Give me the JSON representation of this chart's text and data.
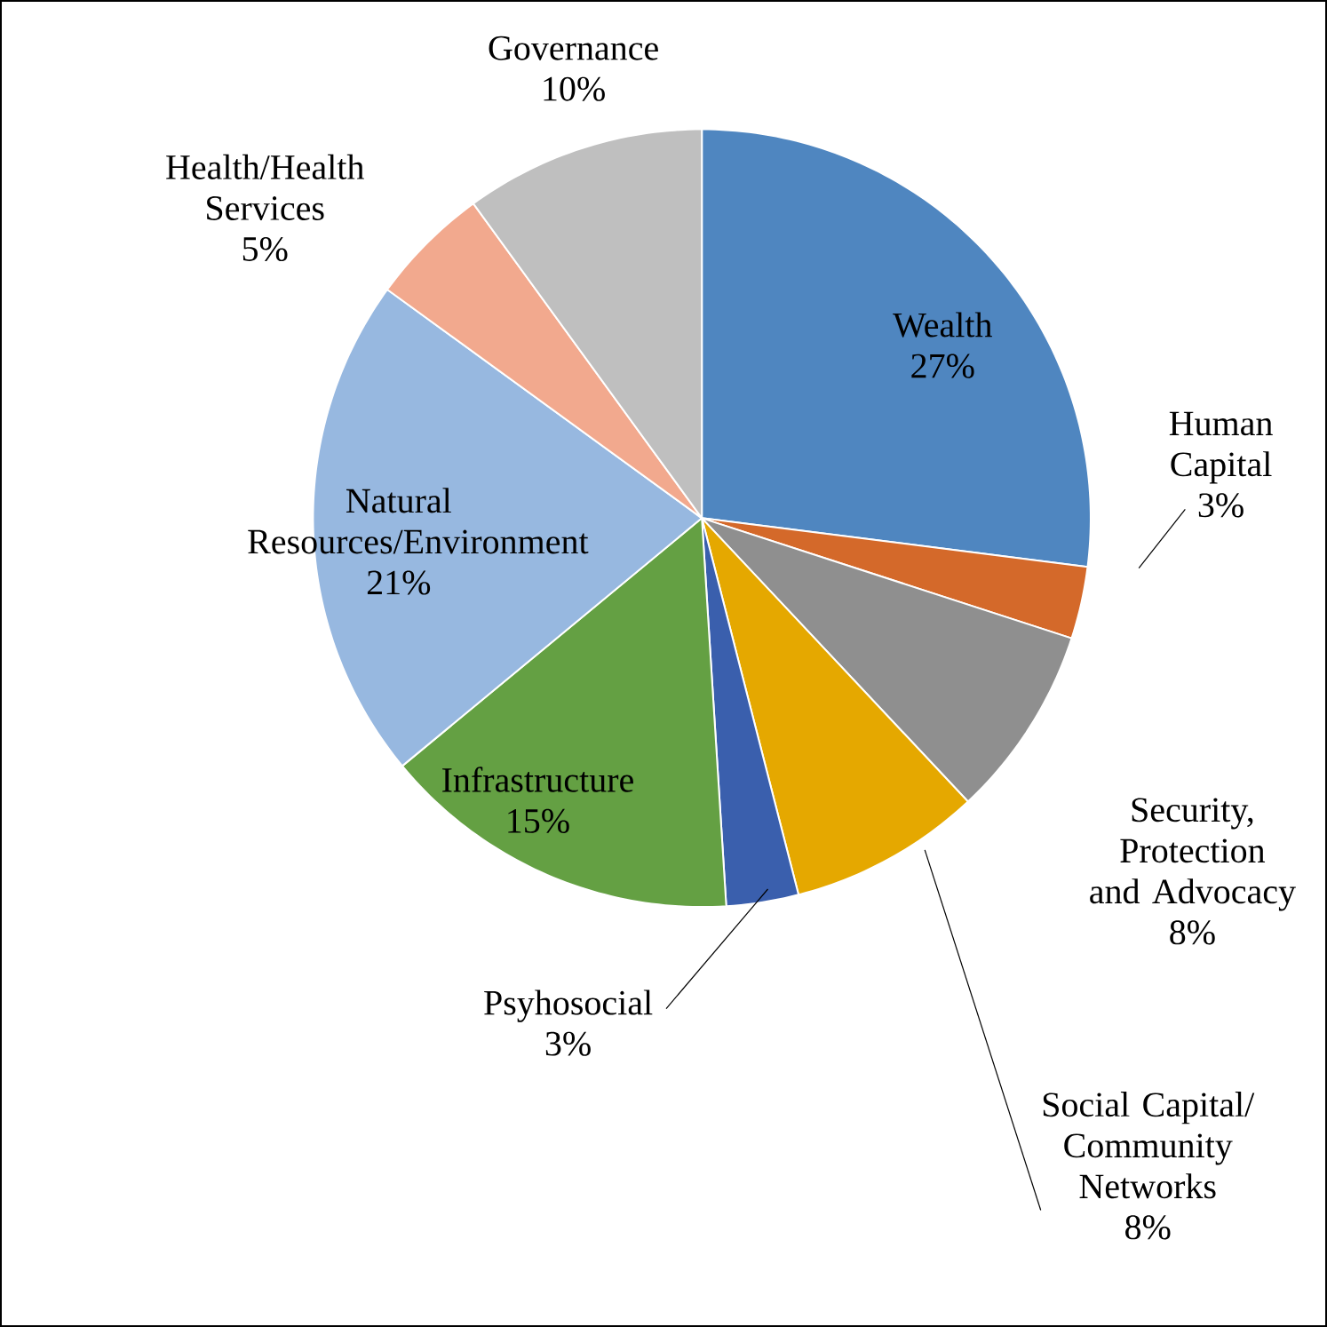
{
  "chart_data": {
    "type": "pie",
    "categories": [
      "Wealth",
      "Human Capital",
      "Security, Protection and Advocacy",
      "Social Capital/ Community Networks",
      "Psyhosocial",
      "Infrastructure",
      "Natural Resources/Environment",
      "Health/Health Services",
      "Governance"
    ],
    "values": [
      27,
      3,
      8,
      8,
      3,
      15,
      21,
      5,
      10
    ],
    "value_labels": [
      "27%",
      "3%",
      "8%",
      "8%",
      "3%",
      "15%",
      "21%",
      "5%",
      "10%"
    ],
    "colors": [
      "#4f86c0",
      "#d4692a",
      "#8f8f8f",
      "#e5a800",
      "#3a5fad",
      "#64a043",
      "#97b8e0",
      "#f2a98e",
      "#bfbfbf"
    ]
  }
}
